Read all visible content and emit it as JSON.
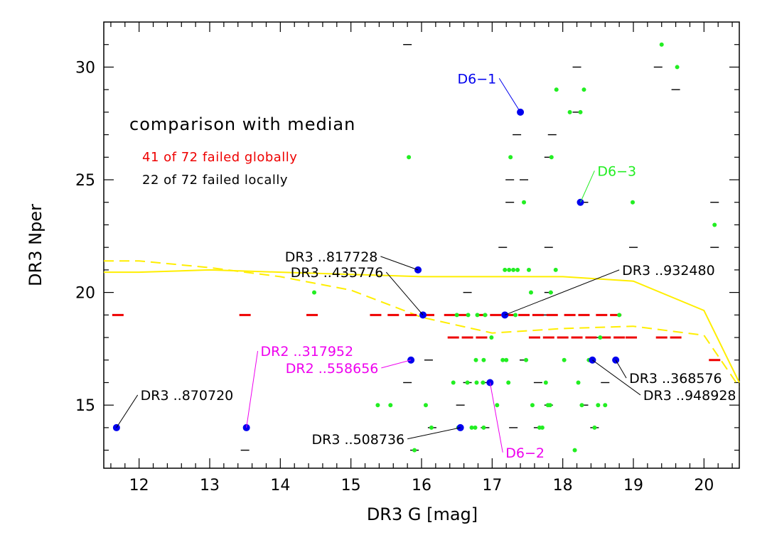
{
  "chart_data": {
    "type": "scatter",
    "xlabel": "DR3 G [mag]",
    "ylabel": "DR3 Nper",
    "xlim": [
      11.5,
      20.5
    ],
    "ylim": [
      12.2,
      32
    ],
    "x_ticks": [
      12,
      13,
      14,
      15,
      16,
      17,
      18,
      19,
      20
    ],
    "y_ticks": [
      15,
      20,
      25,
      30
    ],
    "annotations": {
      "title": "comparison with median",
      "global_fail": "41 of 72 failed globally",
      "local_fail": "22 of 72 failed locally"
    },
    "colors": {
      "green": "#22ee22",
      "blue": "#0000ee",
      "magenta": "#ee00ee",
      "red": "#ee0000",
      "black": "#000000",
      "yellow": "#ffee00"
    },
    "yellow_solid": [
      [
        11.5,
        20.9
      ],
      [
        12.0,
        20.9
      ],
      [
        13.0,
        21.0
      ],
      [
        14.0,
        20.9
      ],
      [
        15.0,
        20.8
      ],
      [
        16.0,
        20.7
      ],
      [
        17.0,
        20.7
      ],
      [
        18.0,
        20.7
      ],
      [
        19.0,
        20.5
      ],
      [
        20.0,
        19.2
      ],
      [
        20.5,
        16.0
      ]
    ],
    "yellow_dashed": [
      [
        11.5,
        21.4
      ],
      [
        12.0,
        21.4
      ],
      [
        13.0,
        21.1
      ],
      [
        14.0,
        20.7
      ],
      [
        15.0,
        20.1
      ],
      [
        16.0,
        18.9
      ],
      [
        17.0,
        18.2
      ],
      [
        18.0,
        18.4
      ],
      [
        19.0,
        18.5
      ],
      [
        20.0,
        18.1
      ],
      [
        20.5,
        15.8
      ]
    ],
    "green_points": [
      [
        15.82,
        26
      ],
      [
        14.48,
        20
      ],
      [
        15.38,
        15
      ],
      [
        15.56,
        15
      ],
      [
        15.9,
        13
      ],
      [
        16.06,
        15
      ],
      [
        16.14,
        14
      ],
      [
        16.45,
        16
      ],
      [
        16.5,
        19
      ],
      [
        16.52,
        14
      ],
      [
        16.65,
        16
      ],
      [
        16.66,
        19
      ],
      [
        16.71,
        14
      ],
      [
        16.76,
        14
      ],
      [
        16.77,
        17
      ],
      [
        16.78,
        16
      ],
      [
        16.79,
        19
      ],
      [
        16.87,
        16
      ],
      [
        16.88,
        17
      ],
      [
        16.88,
        14
      ],
      [
        16.9,
        19
      ],
      [
        16.99,
        18
      ],
      [
        17.07,
        15
      ],
      [
        17.15,
        17
      ],
      [
        17.18,
        21
      ],
      [
        17.2,
        17
      ],
      [
        17.23,
        16
      ],
      [
        17.24,
        21
      ],
      [
        17.26,
        26
      ],
      [
        17.3,
        21
      ],
      [
        17.33,
        19
      ],
      [
        17.36,
        21
      ],
      [
        17.45,
        24
      ],
      [
        17.48,
        17
      ],
      [
        17.52,
        21
      ],
      [
        17.55,
        20
      ],
      [
        17.57,
        15
      ],
      [
        17.67,
        14
      ],
      [
        17.71,
        14
      ],
      [
        17.76,
        16
      ],
      [
        17.79,
        15
      ],
      [
        17.82,
        15
      ],
      [
        17.83,
        20
      ],
      [
        17.84,
        26
      ],
      [
        17.9,
        21
      ],
      [
        17.91,
        29
      ],
      [
        18.02,
        17
      ],
      [
        18.1,
        28
      ],
      [
        18.17,
        13
      ],
      [
        18.22,
        16
      ],
      [
        18.25,
        28
      ],
      [
        18.27,
        15
      ],
      [
        18.3,
        29
      ],
      [
        18.37,
        17
      ],
      [
        18.45,
        14
      ],
      [
        18.5,
        15
      ],
      [
        18.53,
        18
      ],
      [
        18.6,
        15
      ],
      [
        18.8,
        19
      ],
      [
        18.99,
        24
      ],
      [
        19.4,
        31
      ],
      [
        19.62,
        30
      ],
      [
        20.15,
        23
      ],
      [
        18.25,
        24
      ]
    ],
    "black_dashes": [
      [
        15.8,
        31
      ],
      [
        18.2,
        30
      ],
      [
        19.35,
        30
      ],
      [
        19.6,
        29
      ],
      [
        17.35,
        27
      ],
      [
        17.85,
        27
      ],
      [
        18.2,
        28
      ],
      [
        17.8,
        26
      ],
      [
        17.25,
        25
      ],
      [
        17.45,
        25
      ],
      [
        17.25,
        24
      ],
      [
        18.3,
        24
      ],
      [
        20.15,
        24
      ],
      [
        17.15,
        22
      ],
      [
        17.8,
        22
      ],
      [
        19.0,
        22
      ],
      [
        20.15,
        22
      ],
      [
        16.65,
        20
      ],
      [
        17.8,
        20
      ],
      [
        14.45,
        19
      ],
      [
        17.75,
        19
      ],
      [
        18.3,
        19
      ],
      [
        18.45,
        18
      ],
      [
        16.85,
        18
      ],
      [
        16.1,
        17
      ],
      [
        17.45,
        17
      ],
      [
        18.4,
        17
      ],
      [
        15.8,
        16
      ],
      [
        16.65,
        16
      ],
      [
        16.9,
        16
      ],
      [
        17.65,
        16
      ],
      [
        18.6,
        16
      ],
      [
        16.55,
        15
      ],
      [
        17.8,
        15
      ],
      [
        18.3,
        15
      ],
      [
        16.15,
        14
      ],
      [
        16.9,
        14
      ],
      [
        17.3,
        14
      ],
      [
        17.65,
        14
      ],
      [
        18.45,
        14
      ],
      [
        13.5,
        13
      ],
      [
        15.9,
        13
      ]
    ],
    "red_dashes": [
      [
        11.7,
        19
      ],
      [
        13.5,
        19
      ],
      [
        14.45,
        19
      ],
      [
        15.35,
        19
      ],
      [
        15.6,
        19
      ],
      [
        15.85,
        19
      ],
      [
        16.1,
        19
      ],
      [
        16.4,
        19
      ],
      [
        16.6,
        19
      ],
      [
        16.85,
        19
      ],
      [
        17.05,
        19
      ],
      [
        17.25,
        19
      ],
      [
        17.45,
        19
      ],
      [
        17.65,
        19
      ],
      [
        17.85,
        19
      ],
      [
        18.1,
        19
      ],
      [
        18.3,
        19
      ],
      [
        18.55,
        19
      ],
      [
        18.75,
        19
      ],
      [
        16.45,
        18
      ],
      [
        16.65,
        18
      ],
      [
        16.85,
        18
      ],
      [
        17.6,
        18
      ],
      [
        17.8,
        18
      ],
      [
        18.0,
        18
      ],
      [
        18.2,
        18
      ],
      [
        18.4,
        18
      ],
      [
        18.6,
        18
      ],
      [
        18.8,
        18
      ],
      [
        18.97,
        18
      ],
      [
        19.4,
        18
      ],
      [
        19.6,
        18
      ],
      [
        20.15,
        17
      ]
    ],
    "blue_points": [
      {
        "x": 11.68,
        "y": 14,
        "label": "DR3  ..870720",
        "color": "black",
        "lx": 11.98,
        "ly": 15.45
      },
      {
        "x": 13.52,
        "y": 14,
        "label": "DR2  ..317952",
        "color": "magenta",
        "lx": 13.68,
        "ly": 17.4
      },
      {
        "x": 15.85,
        "y": 17,
        "label": "DR2  ..558656",
        "color": "magenta",
        "lx": 15.43,
        "ly": 16.65
      },
      {
        "x": 15.95,
        "y": 21,
        "label": "DR3  ..817728",
        "color": "black",
        "lx": 15.42,
        "ly": 21.6
      },
      {
        "x": 16.02,
        "y": 19,
        "label": "DR3  ..435776",
        "color": "black",
        "lx": 15.5,
        "ly": 20.9
      },
      {
        "x": 16.55,
        "y": 14,
        "label": "DR3  ..508736",
        "color": "black",
        "lx": 15.8,
        "ly": 13.5
      },
      {
        "x": 16.97,
        "y": 16,
        "label": "D6−2",
        "color": "magenta",
        "lx": 17.15,
        "ly": 12.9
      },
      {
        "x": 17.18,
        "y": 19,
        "label": "DR3  ..932480",
        "color": "black",
        "lx": 18.8,
        "ly": 21.0
      },
      {
        "x": 17.4,
        "y": 28,
        "label": "D6−1",
        "color": "blue",
        "lx": 17.1,
        "ly": 29.5
      },
      {
        "x": 18.42,
        "y": 17,
        "label": "DR3  ..948928",
        "color": "black",
        "lx": 19.1,
        "ly": 15.45
      },
      {
        "x": 18.75,
        "y": 17,
        "label": "DR3  ..368576",
        "color": "black",
        "lx": 18.9,
        "ly": 16.2
      },
      {
        "x": 18.25,
        "y": 24,
        "label": "D6−3",
        "color": "green",
        "lx": 18.45,
        "ly": 25.4
      }
    ]
  }
}
